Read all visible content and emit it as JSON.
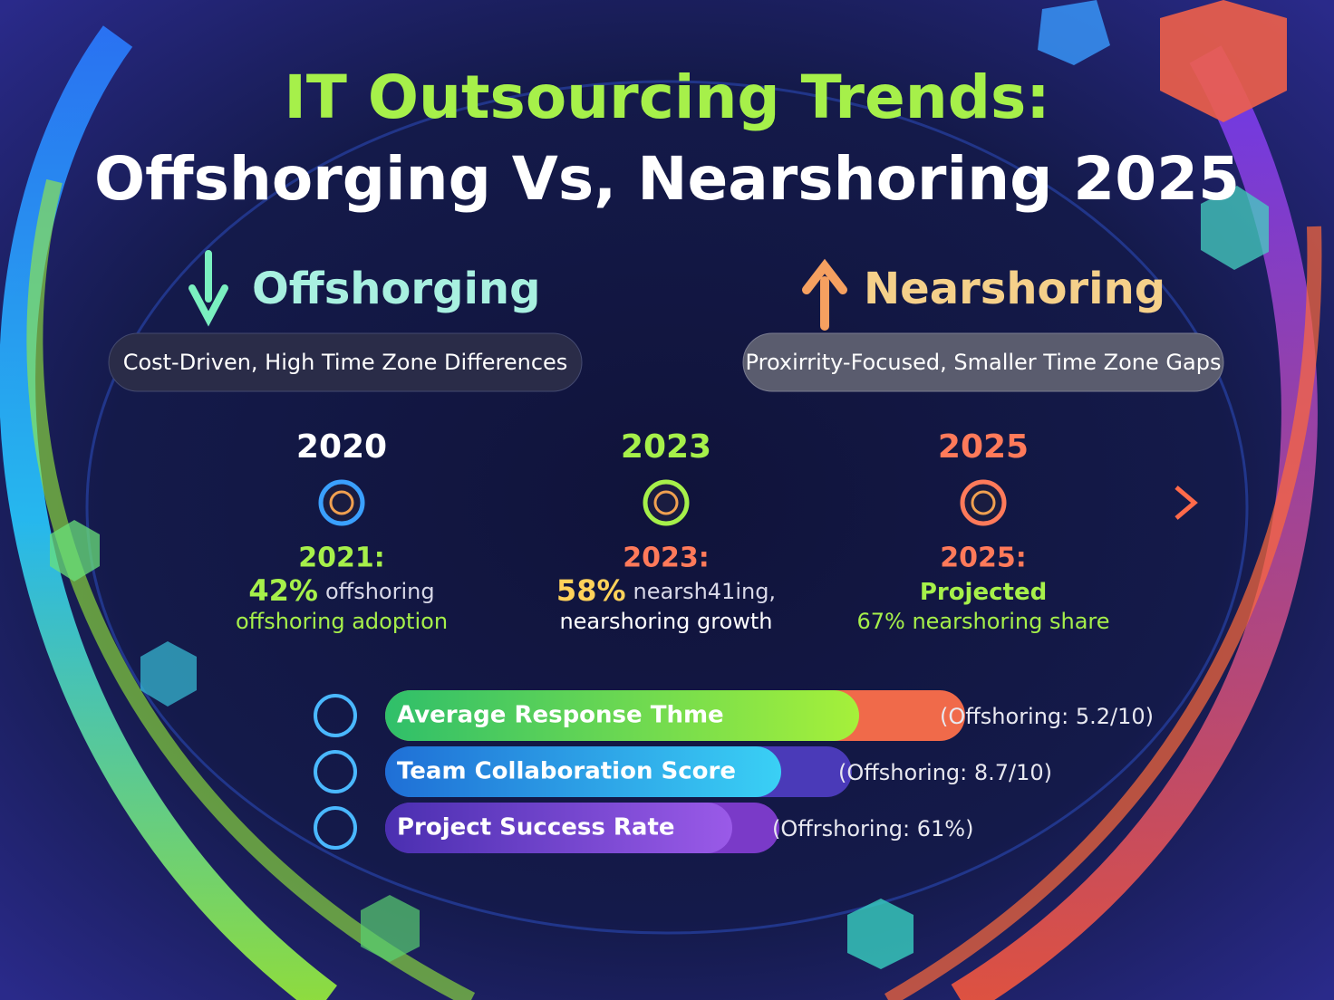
{
  "title": {
    "line1": "IT Outsourcing Trends:",
    "line2": "Offshorging Vs, Nearshoring 2025"
  },
  "sides": [
    {
      "heading": "Offshorging",
      "description": "Cost-Driven, High Time Zone Differences"
    },
    {
      "heading": "Nearshoring",
      "description": "Proxirrity-Focused, Smaller Time Zone Gaps"
    }
  ],
  "timeline": {
    "years": [
      "2020",
      "2023",
      "2025"
    ],
    "milestones": [
      {
        "label": "2021:",
        "lines": [
          [
            "42%",
            "offshoring"
          ],
          [
            "offshoring adoption"
          ]
        ]
      },
      {
        "label": "2023:",
        "lines": [
          [
            "58%",
            "nearsh41ing,"
          ],
          [
            "nearshoring growth"
          ]
        ]
      },
      {
        "label": "2025:",
        "lines": [
          [
            "Projected"
          ],
          [
            "67% nearshoring share"
          ]
        ]
      }
    ]
  },
  "metrics": [
    {
      "name": "Average Response Thme",
      "note": "(Offshoring: 5.2/10)"
    },
    {
      "name": "Team Collaboration Score",
      "note": "(Offshoring: 8.7/10)"
    },
    {
      "name": "Project Success Rate",
      "note": "(Offrshoring: 61%)"
    }
  ]
}
